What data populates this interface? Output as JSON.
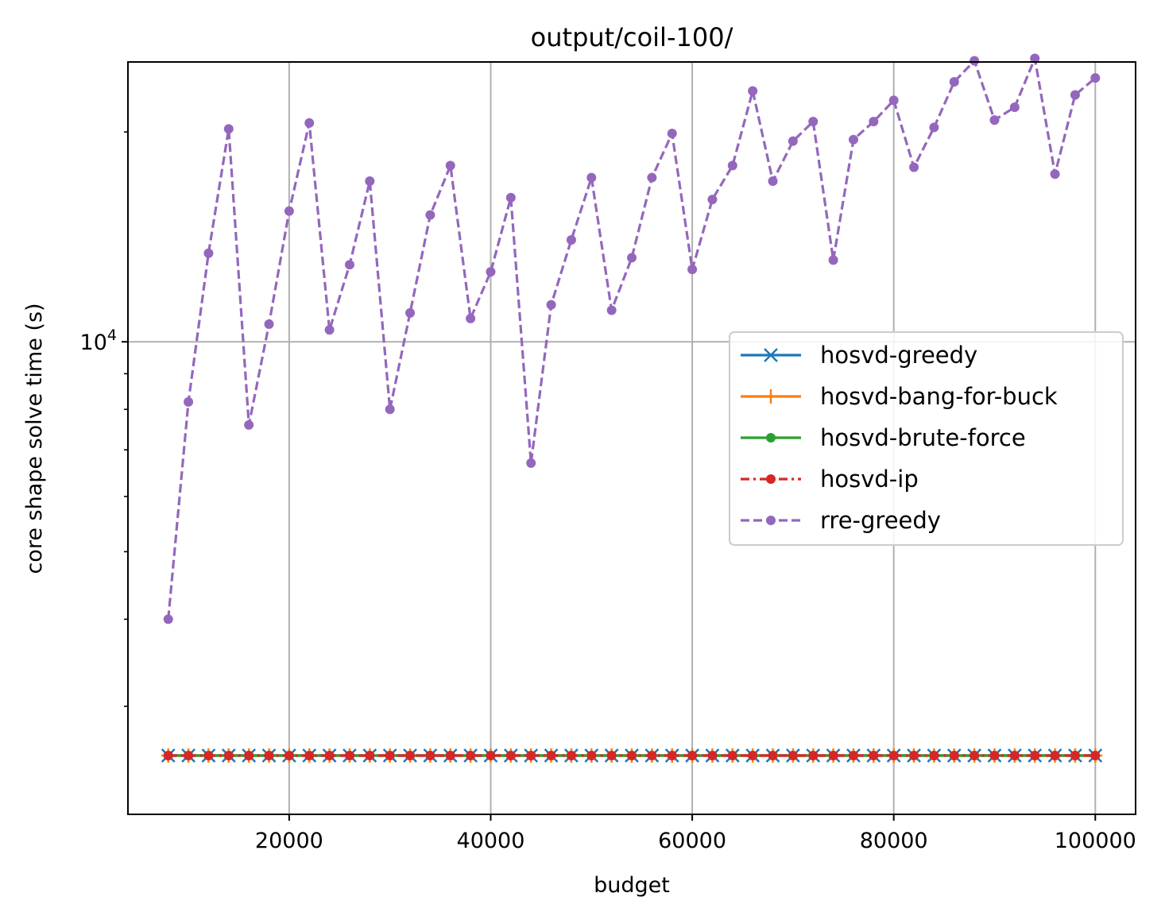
{
  "chart_data": {
    "type": "line",
    "title": "output/coil-100/",
    "xlabel": "budget",
    "ylabel": "core shape solve time (s)",
    "yscale": "log",
    "xlim": [
      4000,
      104000
    ],
    "ylim": [
      2100,
      25200
    ],
    "xticks": [
      20000,
      40000,
      60000,
      80000,
      100000
    ],
    "xtick_labels": [
      "20000",
      "40000",
      "60000",
      "80000",
      "100000"
    ],
    "ytick_major": {
      "value": 10000,
      "base": "10",
      "exp": "4"
    },
    "ytick_minor": [
      3000,
      4000,
      5000,
      6000,
      7000,
      8000,
      9000,
      20000
    ],
    "grid": true,
    "legend_position": "center-right",
    "x": [
      8000,
      10000,
      12000,
      14000,
      16000,
      18000,
      20000,
      22000,
      24000,
      26000,
      28000,
      30000,
      32000,
      34000,
      36000,
      38000,
      40000,
      42000,
      44000,
      46000,
      48000,
      50000,
      52000,
      54000,
      56000,
      58000,
      60000,
      62000,
      64000,
      66000,
      68000,
      70000,
      72000,
      74000,
      76000,
      78000,
      80000,
      82000,
      84000,
      86000,
      88000,
      90000,
      92000,
      94000,
      96000,
      98000,
      100000
    ],
    "series": [
      {
        "name": "hosvd-greedy",
        "color": "#1f77b4",
        "linestyle": "solid",
        "marker": "x",
        "values": [
          2550,
          2550,
          2550,
          2550,
          2550,
          2550,
          2550,
          2550,
          2550,
          2550,
          2550,
          2550,
          2550,
          2550,
          2550,
          2550,
          2550,
          2550,
          2550,
          2550,
          2550,
          2550,
          2550,
          2550,
          2550,
          2550,
          2550,
          2550,
          2550,
          2550,
          2550,
          2550,
          2550,
          2550,
          2550,
          2550,
          2550,
          2550,
          2550,
          2550,
          2550,
          2550,
          2550,
          2550,
          2550,
          2550,
          2550
        ]
      },
      {
        "name": "hosvd-bang-for-buck",
        "color": "#ff7f0e",
        "linestyle": "solid",
        "marker": "+",
        "values": [
          2550,
          2550,
          2550,
          2550,
          2550,
          2550,
          2550,
          2550,
          2550,
          2550,
          2550,
          2550,
          2550,
          2550,
          2550,
          2550,
          2550,
          2550,
          2550,
          2550,
          2550,
          2550,
          2550,
          2550,
          2550,
          2550,
          2550,
          2550,
          2550,
          2550,
          2550,
          2550,
          2550,
          2550,
          2550,
          2550,
          2550,
          2550,
          2550,
          2550,
          2550,
          2550,
          2550,
          2550,
          2550,
          2550,
          2550
        ]
      },
      {
        "name": "hosvd-brute-force",
        "color": "#2ca02c",
        "linestyle": "solid",
        "marker": "dot",
        "values": [
          2550,
          2550,
          2550,
          2550,
          2550,
          2550,
          2550,
          2550,
          2550,
          2550,
          2550,
          2550,
          2550,
          2550,
          2550,
          2550,
          2550,
          2550,
          2550,
          2550,
          2550,
          2550,
          2550,
          2550,
          2550,
          2550,
          2550,
          2550,
          2550,
          2550,
          2550,
          2550,
          2550,
          2550,
          2550,
          2550,
          2550,
          2550,
          2550,
          2550,
          2550,
          2550,
          2550,
          2550,
          2550,
          2550,
          2550
        ]
      },
      {
        "name": "hosvd-ip",
        "color": "#d62728",
        "linestyle": "dashdot",
        "marker": "dot",
        "values": [
          2550,
          2550,
          2550,
          2550,
          2550,
          2550,
          2550,
          2550,
          2550,
          2550,
          2550,
          2550,
          2550,
          2550,
          2550,
          2550,
          2550,
          2550,
          2550,
          2550,
          2550,
          2550,
          2550,
          2550,
          2550,
          2550,
          2550,
          2550,
          2550,
          2550,
          2550,
          2550,
          2550,
          2550,
          2550,
          2550,
          2550,
          2550,
          2550,
          2550,
          2550,
          2550,
          2550,
          2550,
          2550,
          2550,
          2550
        ]
      },
      {
        "name": "rre-greedy",
        "color": "#9467bd",
        "linestyle": "dashed",
        "marker": "dot",
        "values": [
          4000,
          8200,
          13400,
          20200,
          7600,
          10600,
          15400,
          20600,
          10400,
          12900,
          17000,
          8000,
          11000,
          15200,
          17900,
          10800,
          12600,
          16100,
          6700,
          11300,
          14000,
          17200,
          11100,
          13200,
          17200,
          19900,
          12700,
          16000,
          17900,
          22900,
          17000,
          19400,
          20700,
          13100,
          19500,
          20700,
          22200,
          17800,
          20300,
          23600,
          25300,
          20800,
          21700,
          25500,
          17400,
          22600,
          23900
        ]
      }
    ]
  }
}
